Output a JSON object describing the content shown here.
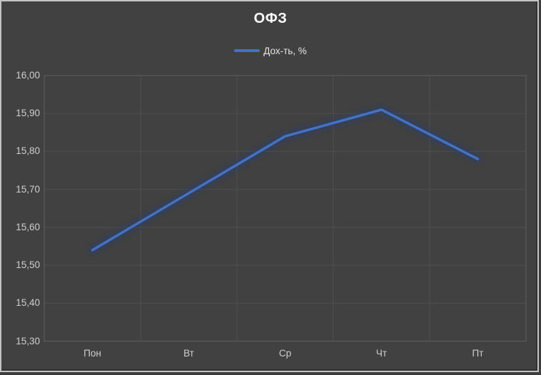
{
  "chart_data": {
    "type": "line",
    "title": "ОФЗ",
    "categories": [
      "Пон",
      "Вт",
      "Ср",
      "Чт",
      "Пт"
    ],
    "series": [
      {
        "name": "Дох-ть, %",
        "values": [
          15.54,
          15.69,
          15.84,
          15.91,
          15.78
        ],
        "color": "#4472C4"
      }
    ],
    "ylim": [
      15.3,
      16.0
    ],
    "y_ticks": [
      {
        "value": 16.0,
        "label": "16,00"
      },
      {
        "value": 15.9,
        "label": "15,90"
      },
      {
        "value": 15.8,
        "label": "15,80"
      },
      {
        "value": 15.7,
        "label": "15,70"
      },
      {
        "value": 15.6,
        "label": "15,60"
      },
      {
        "value": 15.5,
        "label": "15,50"
      },
      {
        "value": 15.4,
        "label": "15,40"
      },
      {
        "value": 15.3,
        "label": "15,30"
      }
    ],
    "grid": true,
    "legend_position": "top"
  },
  "colors": {
    "accent": "#4472C4",
    "glow": "#1f3d78",
    "background": "#414141",
    "grid": "#4f4f4f",
    "axis": "#606060",
    "tick_text": "#cfcfcf",
    "title_text": "#ffffff",
    "legend_text": "#e6e6e6",
    "frame": "#c4c4c4"
  }
}
